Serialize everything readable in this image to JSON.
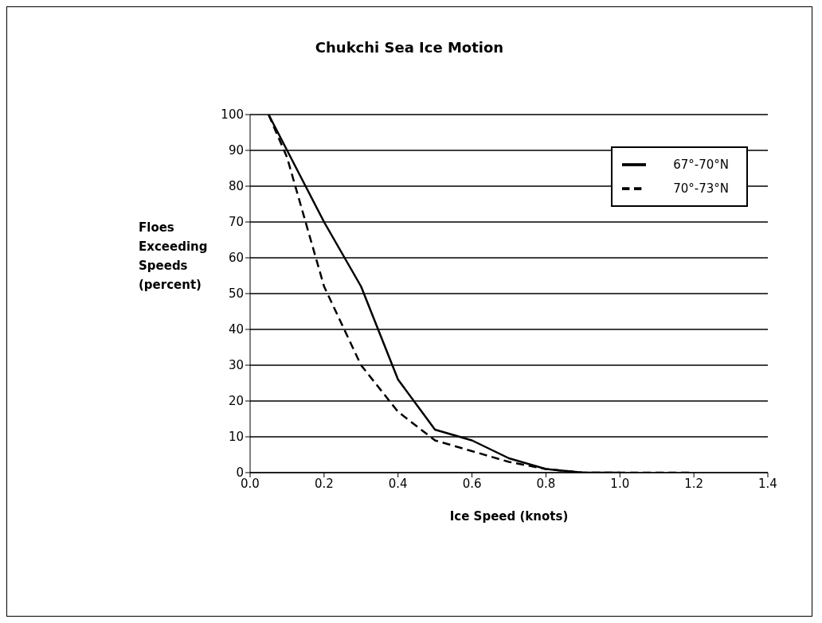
{
  "chart_data": {
    "type": "line",
    "title": "Chukchi Sea Ice Motion",
    "xlabel": "Ice Speed (knots)",
    "ylabel": "Floes Exceeding Speeds (percent)",
    "xlim": [
      0,
      1.4
    ],
    "xticks": [
      {
        "value": 0,
        "label": "0.0"
      },
      0.2,
      0.4,
      0.6,
      0.8,
      {
        "value": 1,
        "label": "1.0"
      },
      1.2,
      1.4
    ],
    "ylim": [
      0,
      100
    ],
    "yticks": [
      0,
      10,
      20,
      30,
      40,
      50,
      60,
      70,
      80,
      90,
      100
    ],
    "grid": "y",
    "legend": "top right",
    "marker": "none",
    "series": [
      {
        "name": "67°-70°N",
        "color": "#000000",
        "line_style": "solid",
        "x": [
          0.05,
          0.15,
          0.2,
          0.3,
          0.4,
          0.5,
          0.6,
          0.7,
          0.8,
          0.9,
          1.0
        ],
        "values": [
          100,
          80,
          70,
          52,
          26,
          12,
          9,
          4,
          1,
          0,
          0
        ]
      },
      {
        "name": "70°-73°N",
        "color": "#000000",
        "line_style": "dashed",
        "x": [
          0.05,
          0.1,
          0.2,
          0.3,
          0.4,
          0.5,
          0.6,
          0.7,
          0.8,
          0.9,
          1.0,
          1.1,
          1.2
        ],
        "values": [
          100,
          88,
          52,
          30,
          17,
          9,
          6,
          3,
          1,
          0,
          0,
          0,
          0
        ]
      }
    ]
  }
}
